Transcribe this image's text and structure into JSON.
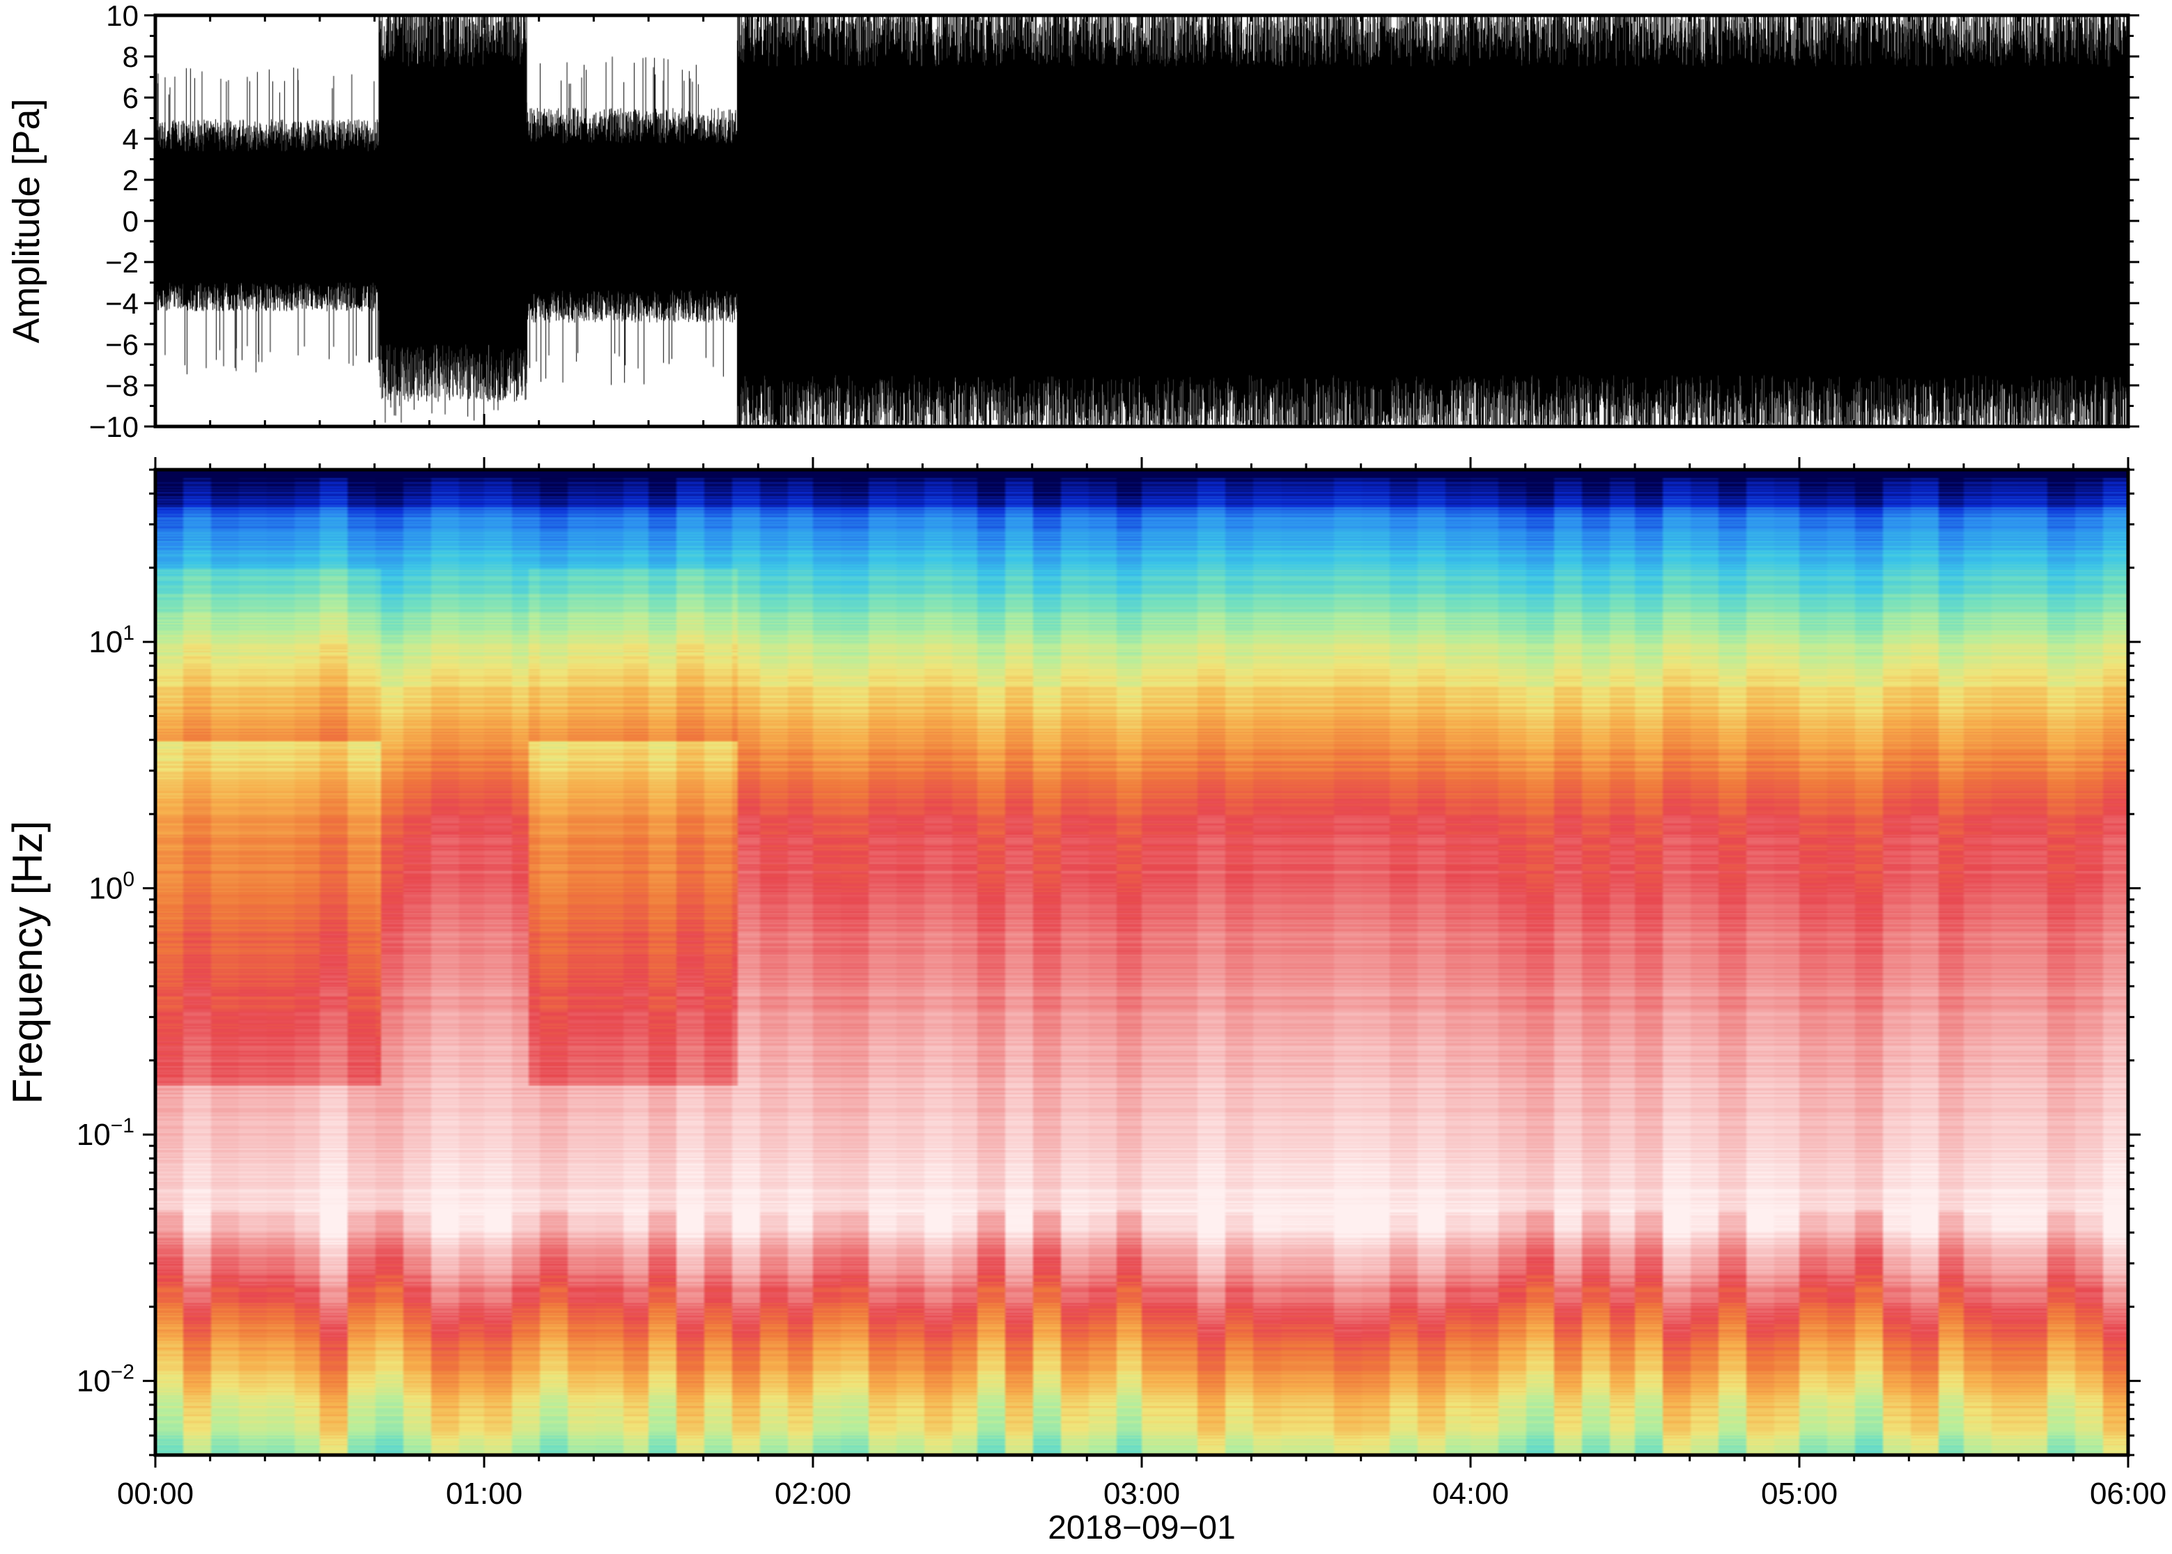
{
  "chart_data": [
    {
      "type": "line",
      "panel": "waveform",
      "ylabel": "Amplitude [Pa]",
      "ylim": [
        -10,
        10
      ],
      "yticks": [
        10,
        8,
        6,
        4,
        2,
        0,
        -2,
        -4,
        -6,
        -8,
        -10
      ],
      "ytick_labels": [
        "10",
        "8",
        "6",
        "4",
        "2",
        "0",
        "−2",
        "−4",
        "−6",
        "−8",
        "−10"
      ],
      "xlim_hours": [
        0,
        6
      ],
      "envelope": {
        "description_segments": [
          {
            "start_hour": 0.0,
            "end_hour": 0.68,
            "upper": 4.5,
            "lower": -4.0,
            "spike": 7.5
          },
          {
            "start_hour": 0.68,
            "end_hour": 1.13,
            "upper": 10,
            "lower": -8.0,
            "spike": 10
          },
          {
            "start_hour": 1.13,
            "end_hour": 1.77,
            "upper": 5.0,
            "lower": -4.5,
            "spike": 8.0
          },
          {
            "start_hour": 1.77,
            "end_hour": 6.0,
            "upper": 10,
            "lower": -10,
            "spike": 10
          }
        ]
      },
      "color": "#000000"
    },
    {
      "type": "heatmap",
      "panel": "spectrogram",
      "ylabel": "Frequency [Hz]",
      "yscale": "log",
      "ylim": [
        0.005,
        50
      ],
      "yticks": [
        10,
        1,
        0.1,
        0.01
      ],
      "ytick_labels": [
        {
          "base": "10",
          "exp": "1"
        },
        {
          "base": "10",
          "exp": "0"
        },
        {
          "base": "10",
          "exp": "−1"
        },
        {
          "base": "10",
          "exp": "−2"
        }
      ],
      "xlabel": "2018−09−01",
      "xtick_labels": [
        "00:00",
        "01:00",
        "02:00",
        "03:00",
        "04:00",
        "05:00",
        "06:00"
      ],
      "xlim_hours": [
        0,
        6
      ],
      "colormap": [
        "#00004f",
        "#0a2bd6",
        "#2b8cf0",
        "#3cc6e8",
        "#73e0c0",
        "#b8ee9c",
        "#f0e57a",
        "#f7b04d",
        "#f07a3c",
        "#e84850",
        "#f08888",
        "#f8c0c0",
        "#fff0f0"
      ],
      "quiet_periods_hours": [
        [
          0.0,
          0.68
        ],
        [
          1.13,
          1.77
        ]
      ]
    }
  ]
}
